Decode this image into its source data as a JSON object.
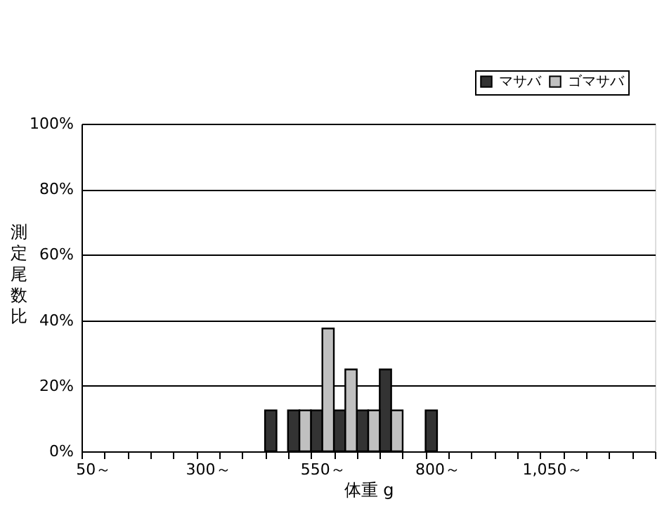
{
  "chart_data": {
    "type": "bar",
    "xlabel": "体重 g",
    "ylabel": "測定尾数比",
    "categories": [
      "50～",
      null,
      null,
      null,
      null,
      "300～",
      null,
      null,
      null,
      null,
      "550～",
      null,
      null,
      null,
      null,
      "800～",
      null,
      null,
      null,
      null,
      "1,050～",
      null,
      null,
      null,
      null
    ],
    "series": [
      {
        "name": "マサバ",
        "color": "#333333",
        "values": [
          null,
          null,
          null,
          null,
          null,
          null,
          null,
          null,
          12.5,
          12.5,
          12.5,
          12.5,
          12.5,
          25,
          null,
          12.5,
          null,
          null,
          null,
          null,
          null,
          null,
          null,
          null,
          null
        ]
      },
      {
        "name": "ゴマサバ",
        "color": "#c0c0c0",
        "values": [
          null,
          null,
          null,
          null,
          null,
          null,
          null,
          null,
          null,
          12.5,
          37.5,
          25,
          12.5,
          12.5,
          null,
          null,
          null,
          null,
          null,
          null,
          null,
          null,
          null,
          null,
          null
        ]
      }
    ],
    "ylim": [
      0,
      100
    ],
    "yticks": [
      {
        "value": 0,
        "label": "0%"
      },
      {
        "value": 20,
        "label": "20%"
      },
      {
        "value": 40,
        "label": "40%"
      },
      {
        "value": 60,
        "label": "60%"
      },
      {
        "value": 80,
        "label": "80%"
      },
      {
        "value": 100,
        "label": "100%"
      }
    ],
    "grid": "y",
    "legend": "top right"
  }
}
